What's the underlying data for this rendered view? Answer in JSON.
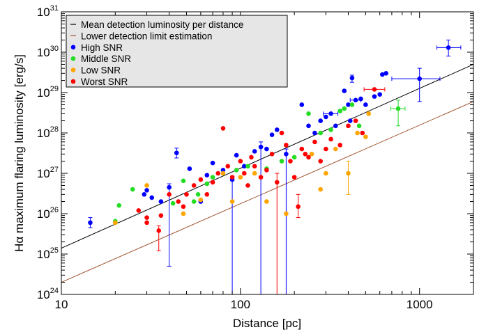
{
  "chart_data": {
    "type": "scatter",
    "xlabel": "Distance [pc]",
    "ylabel": "Hα maximum flaring luminosity [erg/s]",
    "x_scale": "log",
    "y_scale": "log",
    "xlim": [
      10,
      2000
    ],
    "ylim": [
      1e+24,
      1e+31
    ],
    "x_ticks": [
      {
        "value": 10,
        "label": "10"
      },
      {
        "value": 100,
        "label": "100"
      },
      {
        "value": 1000,
        "label": "1000"
      }
    ],
    "y_ticks": [
      {
        "value": 1e+24,
        "mant": "10",
        "exp": "24"
      },
      {
        "value": 1e+25,
        "mant": "10",
        "exp": "25"
      },
      {
        "value": 1e+26,
        "mant": "10",
        "exp": "26"
      },
      {
        "value": 1e+27,
        "mant": "10",
        "exp": "27"
      },
      {
        "value": 1e+28,
        "mant": "10",
        "exp": "28"
      },
      {
        "value": 1e+29,
        "mant": "10",
        "exp": "29"
      },
      {
        "value": 1e+30,
        "mant": "10",
        "exp": "30"
      },
      {
        "value": 1e+31,
        "mant": "10",
        "exp": "31"
      }
    ],
    "grid": false,
    "legend": {
      "position": "top-left",
      "entries": [
        {
          "label": "Mean detection luminosity per distance",
          "kind": "line",
          "color": "#000000"
        },
        {
          "label": "Lower detection limit estimation",
          "kind": "line",
          "color": "#a0522d"
        },
        {
          "label": "High SNR",
          "kind": "dot",
          "color": "#0000ff"
        },
        {
          "label": "Middle SNR",
          "kind": "dot",
          "color": "#22dd22"
        },
        {
          "label": "Low SNR",
          "kind": "dot",
          "color": "#ffa500"
        },
        {
          "label": "Worst SNR",
          "kind": "dot",
          "color": "#ff0000"
        }
      ]
    },
    "lines": [
      {
        "label": "Mean detection luminosity per distance",
        "color": "#000000",
        "x": [
          10,
          2000
        ],
        "y": [
          1.4e+25,
          5e+29
        ]
      },
      {
        "label": "Lower detection limit estimation",
        "color": "#a0522d",
        "x": [
          10,
          2000
        ],
        "y": [
          2e+24,
          6e+28
        ]
      }
    ],
    "series": [
      {
        "label": "High SNR",
        "color": "#0000ff",
        "points": [
          {
            "x": 14.5,
            "y": 6e+25,
            "yl": 4.5e+25,
            "yh": 8e+25
          },
          {
            "x": 29,
            "y": 3e+26
          },
          {
            "x": 30,
            "y": 3.8e+26
          },
          {
            "x": 32,
            "y": 2.5e+26
          },
          {
            "x": 36,
            "y": 2e+26
          },
          {
            "x": 40,
            "y": 4.5e+26,
            "yl": 5e+24,
            "yh": 5.5e+26
          },
          {
            "x": 44,
            "y": 3.2e+27,
            "yl": 2.4e+27,
            "yh": 4.2e+27
          },
          {
            "x": 52,
            "y": 1.3e+27
          },
          {
            "x": 60,
            "y": 2e+26
          },
          {
            "x": 65,
            "y": 9e+26
          },
          {
            "x": 70,
            "y": 1.8e+27
          },
          {
            "x": 80,
            "y": 1.2e+27
          },
          {
            "x": 90,
            "y": 7e+26,
            "yl": 1e+24,
            "yh": 8.5e+26
          },
          {
            "x": 95,
            "y": 2.8e+27
          },
          {
            "x": 105,
            "y": 1.5e+27
          },
          {
            "x": 120,
            "y": 3.5e+27
          },
          {
            "x": 130,
            "y": 4.5e+27,
            "yl": 1e+24,
            "yh": 6e+27
          },
          {
            "x": 140,
            "y": 4e+27
          },
          {
            "x": 150,
            "y": 9e+27
          },
          {
            "x": 160,
            "y": 1.2e+28
          },
          {
            "x": 180,
            "y": 3e+27,
            "yl": 1e+24,
            "yh": 4e+27
          },
          {
            "x": 220,
            "y": 5e+28
          },
          {
            "x": 240,
            "y": 1.5e+28
          },
          {
            "x": 260,
            "y": 1e+28
          },
          {
            "x": 280,
            "y": 2e+28
          },
          {
            "x": 300,
            "y": 2.5e+28
          },
          {
            "x": 320,
            "y": 3e+28,
            "xl": 290,
            "xh": 350
          },
          {
            "x": 340,
            "y": 1.5e+28
          },
          {
            "x": 380,
            "y": 1.1e+29
          },
          {
            "x": 400,
            "y": 5e+28
          },
          {
            "x": 410,
            "y": 2e+28
          },
          {
            "x": 420,
            "y": 2.3e+29,
            "yl": 1.8e+29,
            "yh": 2.7e+29
          },
          {
            "x": 440,
            "y": 6.5e+28,
            "xl": 410,
            "xh": 470
          },
          {
            "x": 470,
            "y": 7e+28
          },
          {
            "x": 500,
            "y": 5e+28
          },
          {
            "x": 560,
            "y": 8e+28
          },
          {
            "x": 600,
            "y": 9e+28
          },
          {
            "x": 620,
            "y": 2.8e+29
          },
          {
            "x": 650,
            "y": 3e+29
          },
          {
            "x": 1000,
            "y": 2.2e+29,
            "xl": 700,
            "xh": 1300,
            "yl": 6e+28,
            "yh": 4e+29
          },
          {
            "x": 1450,
            "y": 1.3e+30,
            "xl": 1250,
            "xh": 1700,
            "yl": 8e+29,
            "yh": 2e+30
          }
        ]
      },
      {
        "label": "Middle SNR",
        "color": "#22dd22",
        "points": [
          {
            "x": 20,
            "y": 6.5e+25
          },
          {
            "x": 21,
            "y": 1.6e+26
          },
          {
            "x": 25,
            "y": 4e+26
          },
          {
            "x": 42,
            "y": 1.8e+26
          },
          {
            "x": 48,
            "y": 6.5e+26
          },
          {
            "x": 55,
            "y": 2e+26
          },
          {
            "x": 58,
            "y": 3e+26
          },
          {
            "x": 65,
            "y": 5.5e+26
          },
          {
            "x": 70,
            "y": 8e+26
          },
          {
            "x": 95,
            "y": 1.2e+27
          },
          {
            "x": 110,
            "y": 1.5e+27
          },
          {
            "x": 140,
            "y": 1.3e+27
          },
          {
            "x": 170,
            "y": 2e+27
          },
          {
            "x": 200,
            "y": 2.5e+27
          },
          {
            "x": 240,
            "y": 3e+28
          },
          {
            "x": 280,
            "y": 1e+28
          },
          {
            "x": 320,
            "y": 1.2e+28
          },
          {
            "x": 360,
            "y": 3.5e+28
          },
          {
            "x": 380,
            "y": 4e+28
          },
          {
            "x": 420,
            "y": 5e+28
          },
          {
            "x": 460,
            "y": 1.5e+28
          },
          {
            "x": 760,
            "y": 4e+28,
            "xl": 690,
            "xh": 830,
            "yl": 1.5e+28,
            "yh": 6.5e+28
          }
        ]
      },
      {
        "label": "Low SNR",
        "color": "#ffa500",
        "points": [
          {
            "x": 20,
            "y": 6e+25
          },
          {
            "x": 30,
            "y": 5e+26
          },
          {
            "x": 48,
            "y": 1e+26
          },
          {
            "x": 60,
            "y": 2.2e+26
          },
          {
            "x": 80,
            "y": 1e+27
          },
          {
            "x": 90,
            "y": 2e+26
          },
          {
            "x": 100,
            "y": 8e+26
          },
          {
            "x": 120,
            "y": 1e+27
          },
          {
            "x": 140,
            "y": 2e+26
          },
          {
            "x": 180,
            "y": 1e+26
          },
          {
            "x": 250,
            "y": 3e+27
          },
          {
            "x": 280,
            "y": 4e+26
          },
          {
            "x": 300,
            "y": 1e+27
          },
          {
            "x": 340,
            "y": 4e+27
          },
          {
            "x": 400,
            "y": 1e+27,
            "yl": 3e+26,
            "yh": 2e+27
          },
          {
            "x": 450,
            "y": 1e+28
          },
          {
            "x": 500,
            "y": 8e+27
          },
          {
            "x": 520,
            "y": 3e+28
          }
        ]
      },
      {
        "label": "Worst SNR",
        "color": "#ff0000",
        "points": [
          {
            "x": 27,
            "y": 1.2e+26
          },
          {
            "x": 30,
            "y": 6e+25
          },
          {
            "x": 30,
            "y": 8e+25
          },
          {
            "x": 35,
            "y": 3.8e+25,
            "yl": 1.2e+25,
            "yh": 5e+25
          },
          {
            "x": 36,
            "y": 9e+25
          },
          {
            "x": 40,
            "y": 3e+26
          },
          {
            "x": 45,
            "y": 2e+26
          },
          {
            "x": 48,
            "y": 1.5e+26
          },
          {
            "x": 50,
            "y": 3e+26
          },
          {
            "x": 55,
            "y": 5e+26
          },
          {
            "x": 60,
            "y": 7e+26
          },
          {
            "x": 65,
            "y": 3e+26
          },
          {
            "x": 70,
            "y": 6e+26
          },
          {
            "x": 75,
            "y": 1e+27
          },
          {
            "x": 80,
            "y": 1.3e+28
          },
          {
            "x": 85,
            "y": 1.5e+27
          },
          {
            "x": 90,
            "y": 8e+26
          },
          {
            "x": 100,
            "y": 2e+27
          },
          {
            "x": 105,
            "y": 1e+27
          },
          {
            "x": 110,
            "y": 5e+26
          },
          {
            "x": 115,
            "y": 2.5e+27
          },
          {
            "x": 120,
            "y": 1.5e+27
          },
          {
            "x": 130,
            "y": 8e+26
          },
          {
            "x": 140,
            "y": 1.2e+27
          },
          {
            "x": 150,
            "y": 3e+27
          },
          {
            "x": 160,
            "y": 6e+26,
            "yl": 1e+24,
            "yh": 1e+27
          },
          {
            "x": 170,
            "y": 1e+28
          },
          {
            "x": 180,
            "y": 5e+27
          },
          {
            "x": 190,
            "y": 2e+27
          },
          {
            "x": 200,
            "y": 8e+26
          },
          {
            "x": 210,
            "y": 1.5e+26,
            "yl": 8e+25,
            "yh": 3e+26
          },
          {
            "x": 220,
            "y": 4e+27
          },
          {
            "x": 230,
            "y": 3e+27
          },
          {
            "x": 240,
            "y": 2.5e+27
          },
          {
            "x": 260,
            "y": 6e+27
          },
          {
            "x": 280,
            "y": 2e+27
          },
          {
            "x": 300,
            "y": 4e+27
          },
          {
            "x": 320,
            "y": 7e+27
          },
          {
            "x": 360,
            "y": 5e+27
          },
          {
            "x": 400,
            "y": 1.5e+28
          },
          {
            "x": 440,
            "y": 2e+28
          },
          {
            "x": 480,
            "y": 1e+28
          },
          {
            "x": 560,
            "y": 1.2e+29,
            "xl": 490,
            "xh": 640
          }
        ]
      }
    ]
  }
}
